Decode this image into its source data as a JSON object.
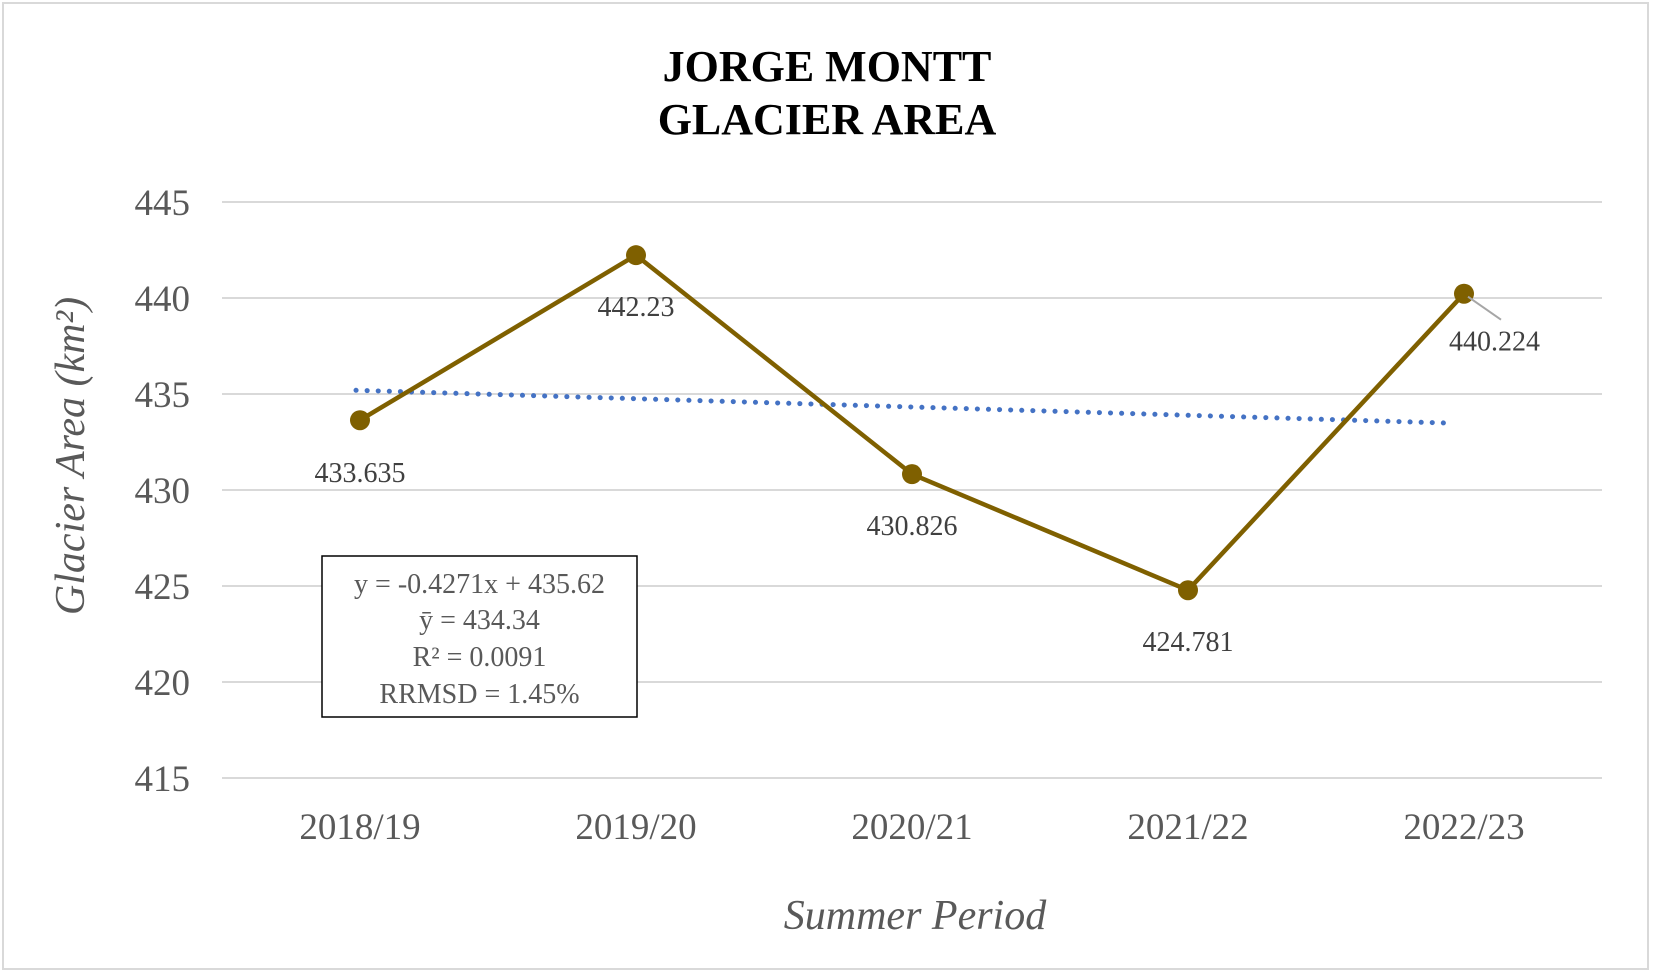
{
  "chart_data": {
    "type": "line",
    "title_lines": [
      "JORGE MONTT",
      "GLACIER AREA"
    ],
    "xlabel": "Summer Period",
    "ylabel": "Glacier Area (km²)",
    "categories": [
      "2018/19",
      "2019/20",
      "2020/21",
      "2021/22",
      "2022/23"
    ],
    "series": [
      {
        "values": [
          433.635,
          442.23,
          430.826,
          424.781,
          440.224
        ],
        "data_labels": [
          "433.635",
          "442.23",
          "430.826",
          "424.781",
          "440.224"
        ],
        "color": "#7f6000"
      }
    ],
    "trendline": {
      "type": "linear",
      "style": "dotted",
      "color": "#4472c4",
      "slope": -0.4271,
      "intercept": 435.62
    },
    "annotation": {
      "lines": [
        "y = -0.4271x + 435.62",
        "ȳ = 434.34",
        "R² = 0.0091",
        "RRMSD = 1.45%"
      ]
    },
    "ylim": [
      415,
      445
    ],
    "yticks": [
      "415",
      "420",
      "425",
      "430",
      "435",
      "440",
      "445"
    ],
    "ytick_values": [
      415,
      420,
      425,
      430,
      435,
      440,
      445
    ],
    "grid": true,
    "legend": "none",
    "gridline_color": "#d9d9d9"
  }
}
